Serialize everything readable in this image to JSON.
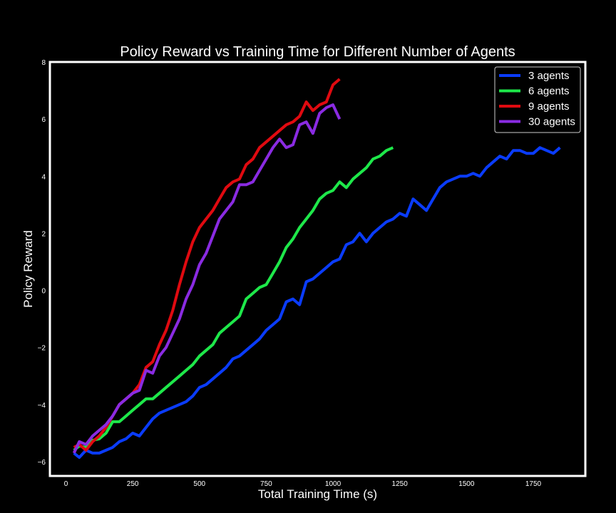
{
  "chart_data": {
    "type": "line",
    "title": "Policy Reward vs Training Time for Different Number of Agents",
    "xlabel": "Total Training Time (s)",
    "ylabel": "Policy Reward",
    "xlim": [
      -60,
      1945
    ],
    "ylim": [
      -6.5,
      8
    ],
    "xticks": [
      0,
      250,
      500,
      750,
      1000,
      1250,
      1500,
      1750
    ],
    "yticks": [
      -6,
      -4,
      -2,
      0,
      2,
      4,
      6,
      8
    ],
    "grid": false,
    "legend_position": "top-right",
    "background": "#000000",
    "series": [
      {
        "name": "3 agents",
        "color": "#0a3cff",
        "x": [
          30,
          50,
          75,
          100,
          125,
          150,
          175,
          200,
          225,
          250,
          275,
          300,
          325,
          350,
          375,
          400,
          425,
          450,
          475,
          500,
          525,
          550,
          575,
          600,
          625,
          650,
          675,
          700,
          725,
          750,
          775,
          800,
          825,
          850,
          875,
          900,
          925,
          950,
          975,
          1000,
          1025,
          1050,
          1075,
          1100,
          1125,
          1150,
          1175,
          1200,
          1225,
          1250,
          1275,
          1300,
          1325,
          1350,
          1375,
          1400,
          1425,
          1450,
          1475,
          1500,
          1525,
          1550,
          1575,
          1600,
          1625,
          1650,
          1675,
          1700,
          1725,
          1750,
          1775,
          1800,
          1825,
          1850
        ],
        "values": [
          -5.7,
          -5.85,
          -5.6,
          -5.7,
          -5.7,
          -5.6,
          -5.5,
          -5.3,
          -5.2,
          -5.0,
          -5.1,
          -4.8,
          -4.5,
          -4.3,
          -4.2,
          -4.1,
          -4.0,
          -3.9,
          -3.7,
          -3.4,
          -3.3,
          -3.1,
          -2.9,
          -2.7,
          -2.4,
          -2.3,
          -2.1,
          -1.9,
          -1.7,
          -1.4,
          -1.2,
          -1.0,
          -0.4,
          -0.3,
          -0.5,
          0.3,
          0.4,
          0.6,
          0.8,
          1.0,
          1.1,
          1.6,
          1.7,
          2.0,
          1.7,
          2.0,
          2.2,
          2.4,
          2.5,
          2.7,
          2.6,
          3.2,
          3.0,
          2.8,
          3.2,
          3.6,
          3.8,
          3.9,
          4.0,
          4.0,
          4.1,
          4.0,
          4.3,
          4.5,
          4.7,
          4.6,
          4.9,
          4.9,
          4.8,
          4.8,
          5.0,
          4.9,
          4.8,
          5.0
        ]
      },
      {
        "name": "6 agents",
        "color": "#1ee84a",
        "x": [
          30,
          50,
          75,
          100,
          125,
          150,
          175,
          200,
          225,
          250,
          275,
          300,
          325,
          350,
          375,
          400,
          425,
          450,
          475,
          500,
          525,
          550,
          575,
          600,
          625,
          650,
          675,
          700,
          725,
          750,
          775,
          800,
          825,
          850,
          875,
          900,
          925,
          950,
          975,
          1000,
          1025,
          1050,
          1075,
          1100,
          1125,
          1150,
          1175,
          1200,
          1225
        ],
        "values": [
          -5.6,
          -5.45,
          -5.5,
          -5.25,
          -5.2,
          -5.0,
          -4.6,
          -4.6,
          -4.4,
          -4.2,
          -4.0,
          -3.8,
          -3.8,
          -3.6,
          -3.4,
          -3.2,
          -3.0,
          -2.8,
          -2.6,
          -2.3,
          -2.1,
          -1.9,
          -1.5,
          -1.3,
          -1.1,
          -0.9,
          -0.3,
          -0.1,
          0.1,
          0.2,
          0.6,
          1.0,
          1.5,
          1.8,
          2.2,
          2.5,
          2.8,
          3.2,
          3.4,
          3.5,
          3.8,
          3.6,
          3.9,
          4.1,
          4.3,
          4.6,
          4.7,
          4.9,
          5.0
        ]
      },
      {
        "name": "9 agents",
        "color": "#e00a10",
        "x": [
          30,
          50,
          75,
          100,
          125,
          150,
          175,
          200,
          225,
          250,
          275,
          300,
          325,
          350,
          375,
          400,
          425,
          450,
          475,
          500,
          525,
          550,
          575,
          600,
          625,
          650,
          675,
          700,
          725,
          750,
          775,
          800,
          825,
          850,
          875,
          900,
          925,
          950,
          975,
          1000,
          1025
        ],
        "values": [
          -5.5,
          -5.4,
          -5.6,
          -5.3,
          -5.1,
          -4.8,
          -4.4,
          -4.0,
          -3.8,
          -3.6,
          -3.3,
          -2.7,
          -2.5,
          -1.9,
          -1.4,
          -0.7,
          0.2,
          1.0,
          1.7,
          2.2,
          2.5,
          2.8,
          3.2,
          3.6,
          3.8,
          3.9,
          4.4,
          4.6,
          5.0,
          5.2,
          5.4,
          5.6,
          5.8,
          5.9,
          6.1,
          6.6,
          6.3,
          6.5,
          6.6,
          7.2,
          7.4
        ]
      },
      {
        "name": "30 agents",
        "color": "#8a2be2",
        "x": [
          30,
          50,
          75,
          100,
          125,
          150,
          175,
          200,
          225,
          250,
          275,
          300,
          325,
          350,
          375,
          400,
          425,
          450,
          475,
          500,
          525,
          550,
          575,
          600,
          625,
          650,
          675,
          700,
          725,
          750,
          775,
          800,
          825,
          850,
          875,
          900,
          925,
          950,
          975,
          1000,
          1025
        ],
        "values": [
          -5.7,
          -5.3,
          -5.4,
          -5.1,
          -4.9,
          -4.7,
          -4.4,
          -4.0,
          -3.8,
          -3.6,
          -3.5,
          -2.8,
          -2.9,
          -2.3,
          -2.0,
          -1.5,
          -1.0,
          -0.3,
          0.2,
          0.9,
          1.3,
          1.9,
          2.5,
          2.8,
          3.1,
          3.7,
          3.7,
          3.8,
          4.2,
          4.6,
          5.0,
          5.3,
          5.0,
          5.1,
          5.8,
          5.9,
          5.5,
          6.2,
          6.4,
          6.5,
          6.0
        ]
      }
    ]
  }
}
